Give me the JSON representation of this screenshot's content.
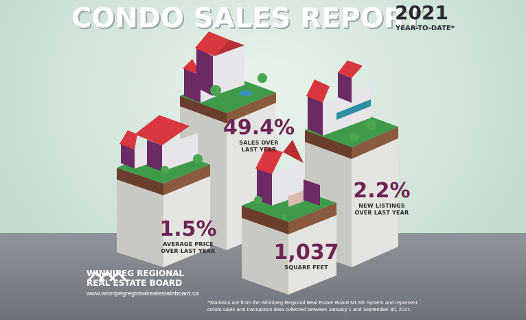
{
  "header": {
    "title": "CONDO SALES REPORT",
    "year": "2021",
    "subtitle": "YEAR-TO-DATE*"
  },
  "stats": [
    {
      "value": "49.4%",
      "label_line1": "SALES OVER",
      "label_line2": "LAST YEAR"
    },
    {
      "value": "1.5%",
      "label_line1": "AVERAGE PRICE",
      "label_line2": "OVER LAST YEAR"
    },
    {
      "value": "2.2%",
      "label_line1": "NEW LISTINGS",
      "label_line2": "OVER LAST YEAR"
    },
    {
      "value": "1,037",
      "label_line1": "SQUARE FEET",
      "label_line2": ""
    }
  ],
  "brand": {
    "line1": "WINNIPEG REGIONAL",
    "line2": "REAL ESTATE BOARD",
    "url": "www.winnipegregionalrealestateboard.ca"
  },
  "footnote": {
    "line1": "*Statistics are from the Winnipeg Regional Real Estate Board MLS® System and represent",
    "line2": "condo sales and transaction data collected between January 1 and September 30, 2021."
  },
  "colors": {
    "roof": "#d8373d",
    "wall_purple": "#6b2a63",
    "grass": "#3f9b4a",
    "soil": "#7a4a35",
    "pillar": "#dcdcd8",
    "accent_text": "#6e2356"
  }
}
